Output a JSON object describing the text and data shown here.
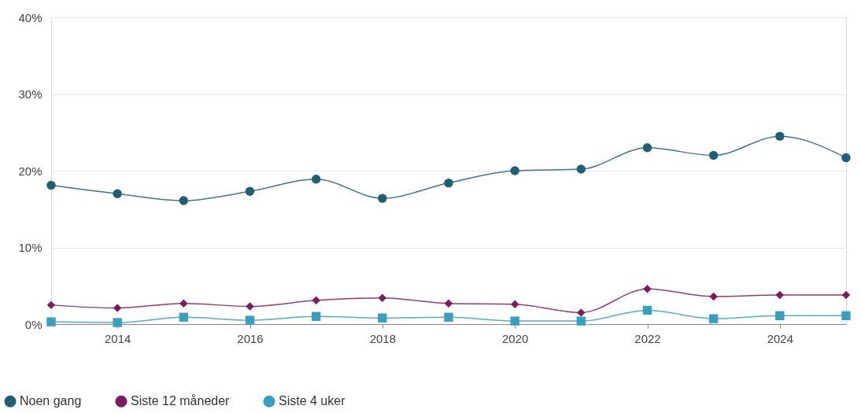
{
  "chart_data": {
    "type": "line",
    "x": [
      2013,
      2014,
      2015,
      2016,
      2017,
      2018,
      2019,
      2020,
      2021,
      2022,
      2023,
      2024,
      2025
    ],
    "series": [
      {
        "name": "Noen gang",
        "color": "#1f5f73",
        "marker": "circle",
        "values": [
          18.1,
          17.0,
          16.1,
          17.3,
          18.9,
          16.4,
          18.4,
          20.0,
          20.2,
          23.0,
          22.0,
          24.5,
          21.7
        ]
      },
      {
        "name": "Siste 12 måneder",
        "color": "#7b1c5e",
        "marker": "diamond",
        "values": [
          2.5,
          2.1,
          2.7,
          2.3,
          3.1,
          3.4,
          2.7,
          2.6,
          1.5,
          4.6,
          3.6,
          3.8,
          3.8
        ]
      },
      {
        "name": "Siste 4 uker",
        "color": "#3a9fbf",
        "marker": "square",
        "values": [
          0.3,
          0.2,
          0.9,
          0.5,
          1.0,
          0.8,
          0.9,
          0.4,
          0.4,
          1.8,
          0.7,
          1.1,
          1.1
        ]
      }
    ],
    "xlim": [
      2013,
      2025
    ],
    "xticks": [
      2014,
      2016,
      2018,
      2020,
      2022,
      2024
    ],
    "ylim": [
      0,
      40
    ],
    "yticks": [
      {
        "value": 0,
        "label": "0%"
      },
      {
        "value": 10,
        "label": "10%"
      },
      {
        "value": 20,
        "label": "20%"
      },
      {
        "value": 30,
        "label": "30%"
      },
      {
        "value": 40,
        "label": "40%"
      }
    ],
    "grid": "y",
    "legend": "bottom left"
  }
}
